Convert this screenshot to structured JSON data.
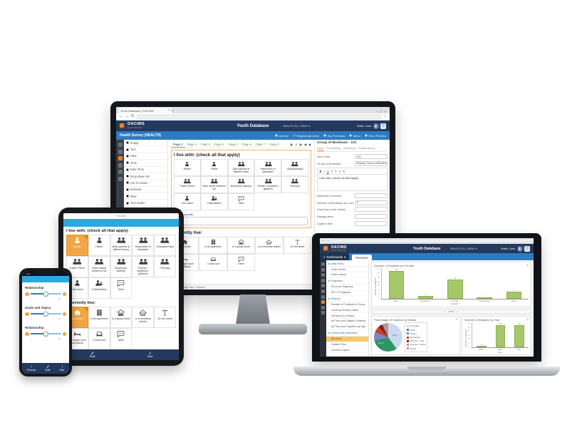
{
  "brand": {
    "logo_text": "DACIMS",
    "logo_sub": "SOFTWARE",
    "app_title": "Youth Database",
    "dataset_selector": "HEALTH SU 1 NEW",
    "user_name": "Smith, John"
  },
  "browser": {
    "tab_title": "Youth Database | DACIMS"
  },
  "desktop": {
    "toolbar_title": "Health Survey (HEALTH)",
    "toolbar_actions": [
      {
        "icon": "license-icon",
        "label": "License"
      },
      {
        "icon": "pencil-icon",
        "label": "Regenerate Items"
      },
      {
        "icon": "key-icon",
        "label": "Key Formulas"
      },
      {
        "icon": "menu-icon",
        "label": "Menu"
      },
      {
        "icon": "search-icon",
        "label": "Form Preview"
      }
    ],
    "rail": {
      "icons": [
        "home-icon",
        "settings-icon",
        "form-builder-icon",
        "lists-icon",
        "reports-icon",
        "users-icon"
      ],
      "active_index": 2
    },
    "palette_items": [
      {
        "icon": "image-icon",
        "label": "Image"
      },
      {
        "icon": "text-icon",
        "label": "Text"
      },
      {
        "icon": "date-icon",
        "label": "Date"
      },
      {
        "icon": "time-icon",
        "label": "Time"
      },
      {
        "icon": "datetime-icon",
        "label": "Date Time"
      },
      {
        "icon": "dropdown-icon",
        "label": "Drop-down list"
      },
      {
        "icon": "list-icon",
        "label": "List of values"
      },
      {
        "icon": "boolean-icon",
        "label": "Boolean"
      },
      {
        "icon": "note-icon",
        "label": "Note"
      },
      {
        "icon": "matrix-icon",
        "label": "Text matrix"
      },
      {
        "icon": "search-icon",
        "label": "Search list"
      }
    ],
    "page_tabs": [
      "Page 1",
      "Page 2",
      "Page 3",
      "Page 4",
      "Page 5",
      "Page 6",
      "Page 7",
      "Page 8"
    ],
    "active_tab": "Page 1",
    "tab_actions": [
      "add-icon",
      "pencil-icon",
      "preview-icon",
      "delete-icon",
      "settings-icon"
    ],
    "status_bar": "This page has 2 objects",
    "properties": {
      "title": "Group of Booleans - 101",
      "tabs": [
        "Basic",
        "Formatting",
        "Advanced",
        "Dependency"
      ],
      "active_tab": "Basic",
      "item_code_label": "Item Code",
      "item_code_value": "101",
      "group_label": "Group of Booleans",
      "group_value": "Display Group of Booleans...",
      "editor_buttons": [
        "B",
        "I",
        "U",
        "T",
        "T",
        "A",
        "¶"
      ],
      "editor_text": "I live with: (check all that apply)",
      "max_checked_label": "Maximum Checked",
      "max_checked_value": "",
      "per_row_label": "Number of Booleans per row",
      "per_row_value": "5",
      "extra_fields": [
        "Insert your own values",
        "Display label",
        "Caption text"
      ]
    }
  },
  "survey": {
    "q1_title": "I live with: (check all that apply)",
    "q1_options": [
      {
        "icon": "person-icon",
        "label": "Mother"
      },
      {
        "icon": "person-icon",
        "label": "Father"
      },
      {
        "icon": "people-icon",
        "label": "Both parents at different times"
      },
      {
        "icon": "people-icon",
        "label": "Stepmother or stepfather"
      },
      {
        "icon": "people-icon",
        "label": "Grandparent(s)"
      },
      {
        "icon": "people-icon",
        "label": "Foster Parent"
      },
      {
        "icon": "people-icon",
        "label": "Other adults related to me"
      },
      {
        "icon": "people-icon",
        "label": "Brother(s)/ sister(s)"
      },
      {
        "icon": "people-icon",
        "label": "Partner / boyfriend / girlfriend"
      },
      {
        "icon": "people-icon",
        "label": "Friend(s)"
      },
      {
        "icon": "person-icon",
        "label": "I live alone"
      },
      {
        "icon": "family-icon",
        "label": "Child/children"
      },
      {
        "icon": "chat-icon",
        "label": "Other"
      }
    ],
    "q1_specify_label": "Please specify",
    "q2_title": "I currently live:",
    "q2_options": [
      {
        "icon": "house-icon",
        "label": "In a house"
      },
      {
        "icon": "apartment-icon",
        "label": "In an apartment"
      },
      {
        "icon": "group-home-icon",
        "label": "In a group home"
      },
      {
        "icon": "shelter-icon",
        "label": "In a homeless shelter"
      },
      {
        "icon": "street-icon",
        "label": "On the street"
      },
      {
        "icon": "bed-icon",
        "label": "In a single room occupancy"
      },
      {
        "icon": "couch-icon",
        "label": "I couch surf"
      },
      {
        "icon": "chat-icon",
        "label": "Other"
      }
    ]
  },
  "tablet": {
    "status_text": "9:41 AM",
    "selected_q1": "Mother",
    "selected_q2": "In a house",
    "buttons": [
      {
        "icon": "pencil-icon",
        "label": "Draft"
      },
      {
        "icon": "arrow-right-icon",
        "label": "Next"
      }
    ]
  },
  "laptop": {
    "nav_menu": "Dashboards",
    "nav_tab": "Overview",
    "rail": {
      "icons": [
        "home-icon",
        "subjects-icon",
        "forms-icon",
        "calendar-icon",
        "reports-icon",
        "documents-icon",
        "alerts-icon",
        "dashboards-icon",
        "settings-icon",
        "tools-icon"
      ],
      "active_index": 7
    },
    "sidebar": [
      {
        "header": "Data Entry",
        "items": [
          "Data Centre",
          "Data Lookup"
        ]
      },
      {
        "header": "Programs",
        "items": [
          "Enrol by Programs",
          "All 1:1 Programs"
        ]
      },
      {
        "header": "Reports",
        "items": [
          "Number of Subjects in Group",
          "Count by Subject Table",
          "Services by Subject",
          "All Tiers and Eligible Subjects",
          "All Tiers and Together by Age"
        ]
      },
      {
        "header": "Community Indicators",
        "items": [
          "All Users",
          "Subject Files",
          "List Sub-Layers"
        ]
      }
    ],
    "sidebar_active": "All Users",
    "pager": "1 of 2"
  },
  "phone": {
    "status_time": "9:41",
    "fields": [
      "Relationship",
      "Goals and Topics",
      "Relationship"
    ],
    "slider_min": "1",
    "slider_max": "10",
    "buttons": [
      {
        "icon": "arrow-left-icon",
        "label": "Previous"
      },
      {
        "icon": "pencil-icon",
        "label": "Draft"
      },
      {
        "icon": "arrow-right-icon",
        "label": "Next"
      }
    ]
  },
  "chart_data": [
    {
      "type": "bar",
      "title": "Number of Subjects per Gender",
      "xlabel": "Gender",
      "ylabel": "Number of Subjects",
      "categories": [
        "Male",
        "Non-Binary",
        "Female",
        "Transgender",
        "Other"
      ],
      "values": [
        35,
        3,
        22,
        1,
        8
      ],
      "yticks": [
        0,
        5,
        10,
        15,
        20,
        25,
        30,
        35
      ],
      "ylim": [
        0,
        35
      ],
      "bar_color": "#a5c76a",
      "grid": false,
      "legend_position": "none"
    },
    {
      "type": "pie",
      "title": "Percentage of Subjects by Status",
      "labels": [
        "Pre-Intake",
        "Active",
        "Inactive",
        "Discharged",
        "Aftercare - Trial",
        "Aftercare - Partial",
        "Closed"
      ],
      "values": [
        40,
        31,
        10,
        7,
        5,
        4,
        3
      ],
      "colors": [
        "#c9daf0",
        "#2f9464",
        "#7b86c8",
        "#cc4125",
        "#8b1d1d",
        "#9e9e9e",
        "#d98880"
      ],
      "shown_labels": [
        "40 %",
        "31 %"
      ],
      "legend_position": "right"
    },
    {
      "type": "bar",
      "title": "Number of Subjects by Year",
      "xlabel": "Year",
      "ylabel": "Number of Subjects",
      "categories": [
        "2015",
        "2016",
        "2017"
      ],
      "values": [
        2,
        30,
        30
      ],
      "yticks": [
        0,
        5,
        10,
        15,
        20,
        25,
        30
      ],
      "ylim": [
        0,
        30
      ],
      "bar_color": "#a5c76a",
      "grid": false,
      "legend_position": "none"
    }
  ]
}
